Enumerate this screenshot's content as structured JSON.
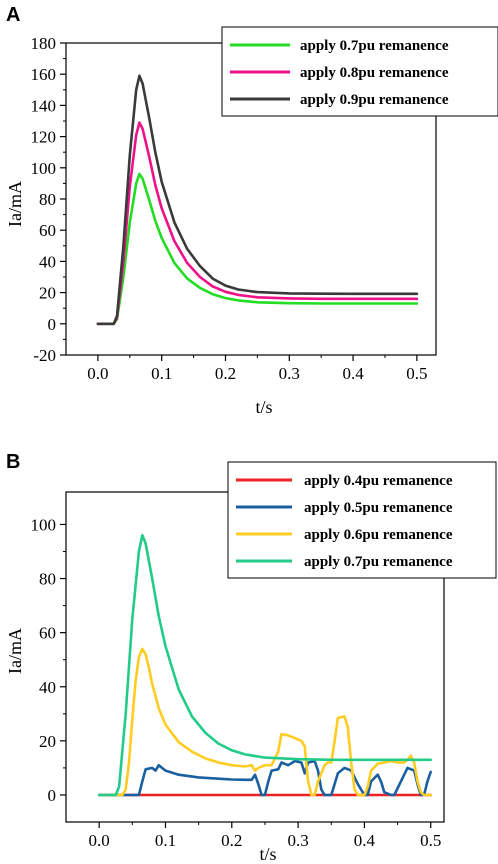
{
  "chart_data": [
    {
      "panel_label": "A",
      "type": "line",
      "xlabel": "t/s",
      "ylabel": "Ia/mA",
      "xlim": [
        -0.05,
        0.53
      ],
      "ylim": [
        -20,
        180
      ],
      "xticks": [
        0.0,
        0.1,
        0.2,
        0.3,
        0.4,
        0.5
      ],
      "xtick_labels": [
        "0.0",
        "0.1",
        "0.2",
        "0.3",
        "0.4",
        "0.5"
      ],
      "yticks": [
        -20,
        0,
        20,
        40,
        60,
        80,
        100,
        120,
        140,
        160,
        180
      ],
      "ytick_labels": [
        "-20",
        "0",
        "20",
        "40",
        "60",
        "80",
        "100",
        "120",
        "140",
        "160",
        "180"
      ],
      "grid": false,
      "legend_position": "top-right",
      "series": [
        {
          "name": "apply  0.7pu remanence",
          "color": "#22dd22",
          "points": [
            [
              0.0,
              0
            ],
            [
              0.025,
              0
            ],
            [
              0.03,
              3
            ],
            [
              0.04,
              30
            ],
            [
              0.05,
              65
            ],
            [
              0.06,
              90
            ],
            [
              0.065,
              96
            ],
            [
              0.07,
              93
            ],
            [
              0.08,
              80
            ],
            [
              0.09,
              66
            ],
            [
              0.1,
              55
            ],
            [
              0.12,
              39
            ],
            [
              0.14,
              29
            ],
            [
              0.16,
              23
            ],
            [
              0.18,
              19
            ],
            [
              0.2,
              16.5
            ],
            [
              0.22,
              15
            ],
            [
              0.25,
              13.8
            ],
            [
              0.3,
              13.2
            ],
            [
              0.35,
              13
            ],
            [
              0.4,
              13
            ],
            [
              0.45,
              13
            ],
            [
              0.5,
              13
            ]
          ]
        },
        {
          "name": "apply  0.8pu remanence",
          "color": "#ee1188",
          "points": [
            [
              0.0,
              0
            ],
            [
              0.025,
              0
            ],
            [
              0.03,
              4
            ],
            [
              0.04,
              40
            ],
            [
              0.05,
              88
            ],
            [
              0.06,
              121
            ],
            [
              0.065,
              129
            ],
            [
              0.07,
              125
            ],
            [
              0.08,
              108
            ],
            [
              0.09,
              89
            ],
            [
              0.1,
              74
            ],
            [
              0.12,
              53
            ],
            [
              0.14,
              39
            ],
            [
              0.16,
              30
            ],
            [
              0.18,
              24
            ],
            [
              0.2,
              20.5
            ],
            [
              0.22,
              18.5
            ],
            [
              0.25,
              17
            ],
            [
              0.3,
              16.3
            ],
            [
              0.35,
              16
            ],
            [
              0.4,
              16
            ],
            [
              0.45,
              16
            ],
            [
              0.5,
              16
            ]
          ]
        },
        {
          "name": "apply  0.9pu remanence",
          "color": "#3a3a3a",
          "points": [
            [
              0.0,
              0
            ],
            [
              0.025,
              0
            ],
            [
              0.03,
              5
            ],
            [
              0.04,
              50
            ],
            [
              0.05,
              108
            ],
            [
              0.06,
              150
            ],
            [
              0.065,
              159
            ],
            [
              0.07,
              154
            ],
            [
              0.08,
              133
            ],
            [
              0.09,
              110
            ],
            [
              0.1,
              91
            ],
            [
              0.12,
              65
            ],
            [
              0.14,
              48
            ],
            [
              0.16,
              37
            ],
            [
              0.18,
              29
            ],
            [
              0.2,
              24.5
            ],
            [
              0.22,
              22
            ],
            [
              0.25,
              20.3
            ],
            [
              0.3,
              19.5
            ],
            [
              0.35,
              19.3
            ],
            [
              0.4,
              19.2
            ],
            [
              0.45,
              19.2
            ],
            [
              0.5,
              19.2
            ]
          ]
        }
      ]
    },
    {
      "panel_label": "B",
      "type": "line",
      "xlabel": "t/s",
      "ylabel": "Ia/mA",
      "xlim": [
        -0.05,
        0.52
      ],
      "ylim": [
        -10,
        112
      ],
      "xticks": [
        0.0,
        0.1,
        0.2,
        0.3,
        0.4,
        0.5
      ],
      "xtick_labels": [
        "0.0",
        "0.1",
        "0.2",
        "0.3",
        "0.4",
        "0.5"
      ],
      "yticks": [
        0,
        20,
        40,
        60,
        80,
        100
      ],
      "ytick_labels": [
        "0",
        "20",
        "40",
        "60",
        "80",
        "100"
      ],
      "grid": false,
      "legend_position": "top-right",
      "series": [
        {
          "name": "apply  0.4pu remanence",
          "color": "#ee2222",
          "points": [
            [
              0.0,
              0
            ],
            [
              0.1,
              0
            ],
            [
              0.2,
              0
            ],
            [
              0.3,
              0
            ],
            [
              0.4,
              0
            ],
            [
              0.5,
              0
            ]
          ]
        },
        {
          "name": "apply  0.5pu remanence",
          "color": "#1a5fa0",
          "points": [
            [
              0.0,
              0
            ],
            [
              0.06,
              0
            ],
            [
              0.065,
              5
            ],
            [
              0.07,
              9.5
            ],
            [
              0.08,
              10
            ],
            [
              0.085,
              9
            ],
            [
              0.09,
              11
            ],
            [
              0.1,
              9
            ],
            [
              0.12,
              7.5
            ],
            [
              0.15,
              6.5
            ],
            [
              0.18,
              6
            ],
            [
              0.2,
              5.7
            ],
            [
              0.22,
              5.6
            ],
            [
              0.23,
              5.6
            ],
            [
              0.235,
              7.5
            ],
            [
              0.24,
              4
            ],
            [
              0.245,
              0
            ],
            [
              0.25,
              0
            ],
            [
              0.255,
              5
            ],
            [
              0.26,
              9
            ],
            [
              0.27,
              9.5
            ],
            [
              0.275,
              12
            ],
            [
              0.285,
              11
            ],
            [
              0.295,
              12.5
            ],
            [
              0.305,
              12
            ],
            [
              0.31,
              8
            ],
            [
              0.315,
              12
            ],
            [
              0.325,
              12.5
            ],
            [
              0.33,
              9
            ],
            [
              0.335,
              2
            ],
            [
              0.34,
              0
            ],
            [
              0.35,
              0
            ],
            [
              0.355,
              4
            ],
            [
              0.36,
              8
            ],
            [
              0.37,
              10
            ],
            [
              0.38,
              9
            ],
            [
              0.39,
              4
            ],
            [
              0.4,
              0
            ],
            [
              0.405,
              0
            ],
            [
              0.41,
              5
            ],
            [
              0.42,
              7.5
            ],
            [
              0.425,
              5
            ],
            [
              0.43,
              1
            ],
            [
              0.44,
              0
            ],
            [
              0.445,
              0
            ],
            [
              0.455,
              5
            ],
            [
              0.465,
              10
            ],
            [
              0.475,
              9
            ],
            [
              0.48,
              4
            ],
            [
              0.485,
              0
            ],
            [
              0.49,
              0
            ],
            [
              0.495,
              5
            ],
            [
              0.5,
              8.5
            ]
          ]
        },
        {
          "name": "apply  0.6pu remanence",
          "color": "#ffcc22",
          "points": [
            [
              0.0,
              0
            ],
            [
              0.035,
              0
            ],
            [
              0.04,
              2
            ],
            [
              0.045,
              12
            ],
            [
              0.05,
              28
            ],
            [
              0.055,
              42
            ],
            [
              0.06,
              51
            ],
            [
              0.065,
              54
            ],
            [
              0.07,
              52
            ],
            [
              0.075,
              47
            ],
            [
              0.08,
              41
            ],
            [
              0.09,
              32
            ],
            [
              0.1,
              26
            ],
            [
              0.12,
              19.5
            ],
            [
              0.14,
              16
            ],
            [
              0.16,
              13.5
            ],
            [
              0.18,
              12
            ],
            [
              0.2,
              11
            ],
            [
              0.22,
              10.5
            ],
            [
              0.23,
              11
            ],
            [
              0.235,
              9
            ],
            [
              0.24,
              10
            ],
            [
              0.25,
              11
            ],
            [
              0.26,
              11
            ],
            [
              0.27,
              16
            ],
            [
              0.275,
              22.5
            ],
            [
              0.285,
              22
            ],
            [
              0.295,
              21
            ],
            [
              0.305,
              20
            ],
            [
              0.31,
              18
            ],
            [
              0.315,
              5
            ],
            [
              0.32,
              0
            ],
            [
              0.325,
              0
            ],
            [
              0.33,
              5
            ],
            [
              0.34,
              11
            ],
            [
              0.345,
              12
            ],
            [
              0.35,
              12
            ],
            [
              0.355,
              20
            ],
            [
              0.36,
              28.5
            ],
            [
              0.37,
              29
            ],
            [
              0.375,
              25
            ],
            [
              0.38,
              12
            ],
            [
              0.385,
              2
            ],
            [
              0.39,
              0
            ],
            [
              0.4,
              0
            ],
            [
              0.405,
              3
            ],
            [
              0.41,
              9
            ],
            [
              0.42,
              11.5
            ],
            [
              0.43,
              12
            ],
            [
              0.44,
              12.5
            ],
            [
              0.45,
              12
            ],
            [
              0.46,
              12
            ],
            [
              0.465,
              13
            ],
            [
              0.47,
              14.5
            ],
            [
              0.475,
              12
            ],
            [
              0.48,
              5
            ],
            [
              0.485,
              1
            ],
            [
              0.49,
              0
            ],
            [
              0.5,
              0
            ]
          ]
        },
        {
          "name": "apply  0.7pu remanence",
          "color": "#22cc88",
          "points": [
            [
              0.0,
              0
            ],
            [
              0.025,
              0
            ],
            [
              0.03,
              3
            ],
            [
              0.04,
              30
            ],
            [
              0.05,
              65
            ],
            [
              0.06,
              90
            ],
            [
              0.065,
              96
            ],
            [
              0.07,
              93
            ],
            [
              0.08,
              80
            ],
            [
              0.09,
              66
            ],
            [
              0.1,
              55
            ],
            [
              0.12,
              39
            ],
            [
              0.14,
              29
            ],
            [
              0.16,
              23
            ],
            [
              0.18,
              19
            ],
            [
              0.2,
              16.5
            ],
            [
              0.22,
              15
            ],
            [
              0.25,
              13.8
            ],
            [
              0.3,
              13.2
            ],
            [
              0.35,
              13
            ],
            [
              0.4,
              13
            ],
            [
              0.45,
              13
            ],
            [
              0.5,
              13
            ]
          ]
        }
      ]
    }
  ]
}
